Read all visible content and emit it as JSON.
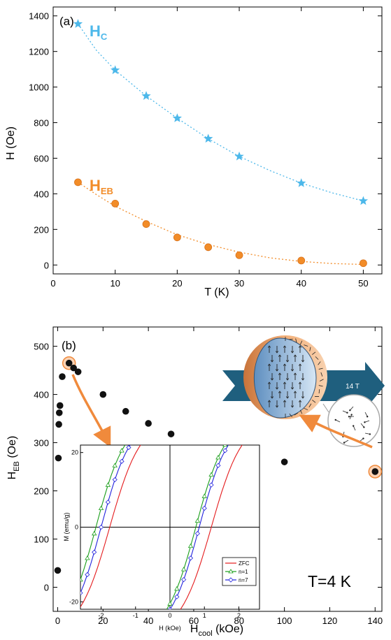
{
  "chart_data": [
    {
      "type": "scatter",
      "panel_label": "(a)",
      "xlabel": "T (K)",
      "ylabel": "H (Oe)",
      "xlim": [
        0,
        53
      ],
      "ylim": [
        -50,
        1450
      ],
      "x_ticks": [
        0,
        10,
        20,
        30,
        40,
        50
      ],
      "y_ticks": [
        0,
        200,
        400,
        600,
        800,
        1000,
        1200,
        1400
      ],
      "series": [
        {
          "name": "H_C",
          "label_main": "H",
          "label_sub": "C",
          "color": "#4db8ea",
          "marker": "star",
          "x": [
            4,
            10,
            15,
            20,
            25,
            30,
            40,
            50
          ],
          "y": [
            1355,
            1095,
            950,
            825,
            710,
            610,
            460,
            360
          ],
          "fit": [
            [
              4,
              1355
            ],
            [
              7,
              1205
            ],
            [
              10,
              1095
            ],
            [
              15,
              950
            ],
            [
              20,
              825
            ],
            [
              25,
              710
            ],
            [
              30,
              610
            ],
            [
              35,
              530
            ],
            [
              40,
              460
            ],
            [
              45,
              405
            ],
            [
              50,
              360
            ]
          ]
        },
        {
          "name": "H_EB",
          "label_main": "H",
          "label_sub": "EB",
          "color": "#f28c28",
          "marker": "circle",
          "x": [
            4,
            10,
            15,
            20,
            25,
            30,
            40,
            50
          ],
          "y": [
            465,
            345,
            230,
            155,
            100,
            55,
            25,
            10
          ],
          "fit": [
            [
              4,
              465
            ],
            [
              7,
              395
            ],
            [
              10,
              330
            ],
            [
              15,
              245
            ],
            [
              20,
              170
            ],
            [
              25,
              115
            ],
            [
              30,
              72
            ],
            [
              35,
              40
            ],
            [
              40,
              20
            ],
            [
              45,
              8
            ],
            [
              50,
              3
            ]
          ]
        }
      ]
    },
    {
      "type": "scatter",
      "panel_label": "(b)",
      "xlabel_main": "H",
      "xlabel_sub": "cool",
      "xlabel_unit": " (kOe)",
      "ylabel_main": "H",
      "ylabel_sub": "EB",
      "ylabel_unit": " (Oe)",
      "xlim": [
        -2,
        143
      ],
      "ylim": [
        -50,
        540
      ],
      "x_ticks": [
        0,
        20,
        40,
        60,
        80,
        100,
        120,
        140
      ],
      "y_ticks": [
        0,
        100,
        200,
        300,
        400,
        500
      ],
      "annotation": "T=4 K",
      "field_label": "14 T",
      "series": [
        {
          "name": "H_EB",
          "color": "#111111",
          "marker": "circle",
          "x": [
            0,
            0.3,
            0.5,
            0.7,
            1,
            2,
            5,
            7,
            9,
            20,
            30,
            40,
            50,
            75,
            100,
            140
          ],
          "y": [
            35,
            268,
            338,
            362,
            377,
            437,
            465,
            455,
            447,
            400,
            365,
            340,
            318,
            275,
            260,
            240
          ],
          "highlighted_x": [
            5,
            140
          ]
        }
      ],
      "inset": {
        "type": "line",
        "xlabel": "H (kOe)",
        "ylabel": "M (emu/g)",
        "xlim": [
          -2.6,
          2.6
        ],
        "ylim": [
          -22,
          22
        ],
        "x_ticks": [
          -2,
          -1,
          0,
          1,
          2
        ],
        "y_ticks": [
          -20,
          0,
          20
        ],
        "legend": [
          {
            "name": "ZFC",
            "color": "#e41a1c",
            "marker": "none"
          },
          {
            "name": "n=1",
            "color": "#1a9e1a",
            "marker": "triangle"
          },
          {
            "name": "n=7",
            "color": "#2222dd",
            "marker": "diamond"
          }
        ],
        "loops": [
          {
            "name": "ZFC",
            "color": "#e41a1c",
            "coercive_left": -1.75,
            "coercive_right": 1.2,
            "width": 0.9,
            "saturation": 29
          },
          {
            "name": "n=1",
            "color": "#1a9e1a",
            "coercive_left": -2.15,
            "coercive_right": 0.75,
            "width": 0.85,
            "saturation": 29
          },
          {
            "name": "n=7",
            "color": "#2222dd",
            "coercive_left": -2.0,
            "coercive_right": 0.85,
            "width": 0.85,
            "saturation": 29
          }
        ]
      }
    }
  ]
}
